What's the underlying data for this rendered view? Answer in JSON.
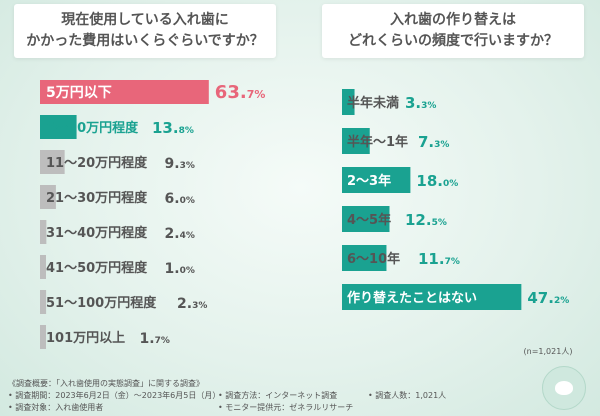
{
  "charts": [
    {
      "type": "bar",
      "question_lines": [
        "現在使用している入れ歯に",
        "かかった費用はいくらぐらいですか？"
      ],
      "categories": [
        "5万円以下",
        "6〜10万円程度",
        "11〜20万円程度",
        "21〜30万円程度",
        "31〜40万円程度",
        "41〜50万円程度",
        "51〜100万円程度",
        "101万円以上"
      ],
      "values": [
        63.7,
        13.8,
        9.3,
        6.0,
        2.4,
        1.0,
        2.3,
        1.7
      ],
      "value_labels": [
        [
          "63.",
          "7",
          "%"
        ],
        [
          "13.",
          "8",
          "%"
        ],
        [
          "9.",
          "3",
          "%"
        ],
        [
          "6.",
          "0",
          "%"
        ],
        [
          "2.",
          "4",
          "%"
        ],
        [
          "1.",
          "0",
          "%"
        ],
        [
          "2.",
          "3",
          "%"
        ],
        [
          "1.",
          "7",
          "%"
        ]
      ],
      "highlight_color": "#e8667a",
      "secondary_color": "#1aa291",
      "other_color": "#bdbdbd"
    },
    {
      "type": "bar",
      "question_lines": [
        "入れ歯の作り替えは",
        "どれくらいの頻度で行いますか？"
      ],
      "categories": [
        "半年未満",
        "半年〜1年",
        "2〜3年",
        "4〜5年",
        "6〜10年",
        "作り替えたことはない"
      ],
      "values": [
        3.3,
        7.3,
        18.0,
        12.5,
        11.7,
        47.2
      ],
      "value_labels": [
        [
          "3.",
          "3",
          "%"
        ],
        [
          "7.",
          "3",
          "%"
        ],
        [
          "18.",
          "0",
          "%"
        ],
        [
          "12.",
          "5",
          "%"
        ],
        [
          "11.",
          "7",
          "%"
        ],
        [
          "47.",
          "2",
          "%"
        ]
      ],
      "bar_color": "#1aa291",
      "note": "(n=1,021人)"
    }
  ],
  "footer": {
    "overview": "《調査概要：「入れ歯使用の実態調査」に関する調査》",
    "period": "• 調査期間：2023年6月2日（金）〜2023年6月5日（月）",
    "target": "• 調査対象：入れ歯使用者",
    "method": "• 調査方法：インターネット調査",
    "provider": "• モニター提供元：ゼネラルリサーチ",
    "count": "• 調査人数：1,021人"
  }
}
